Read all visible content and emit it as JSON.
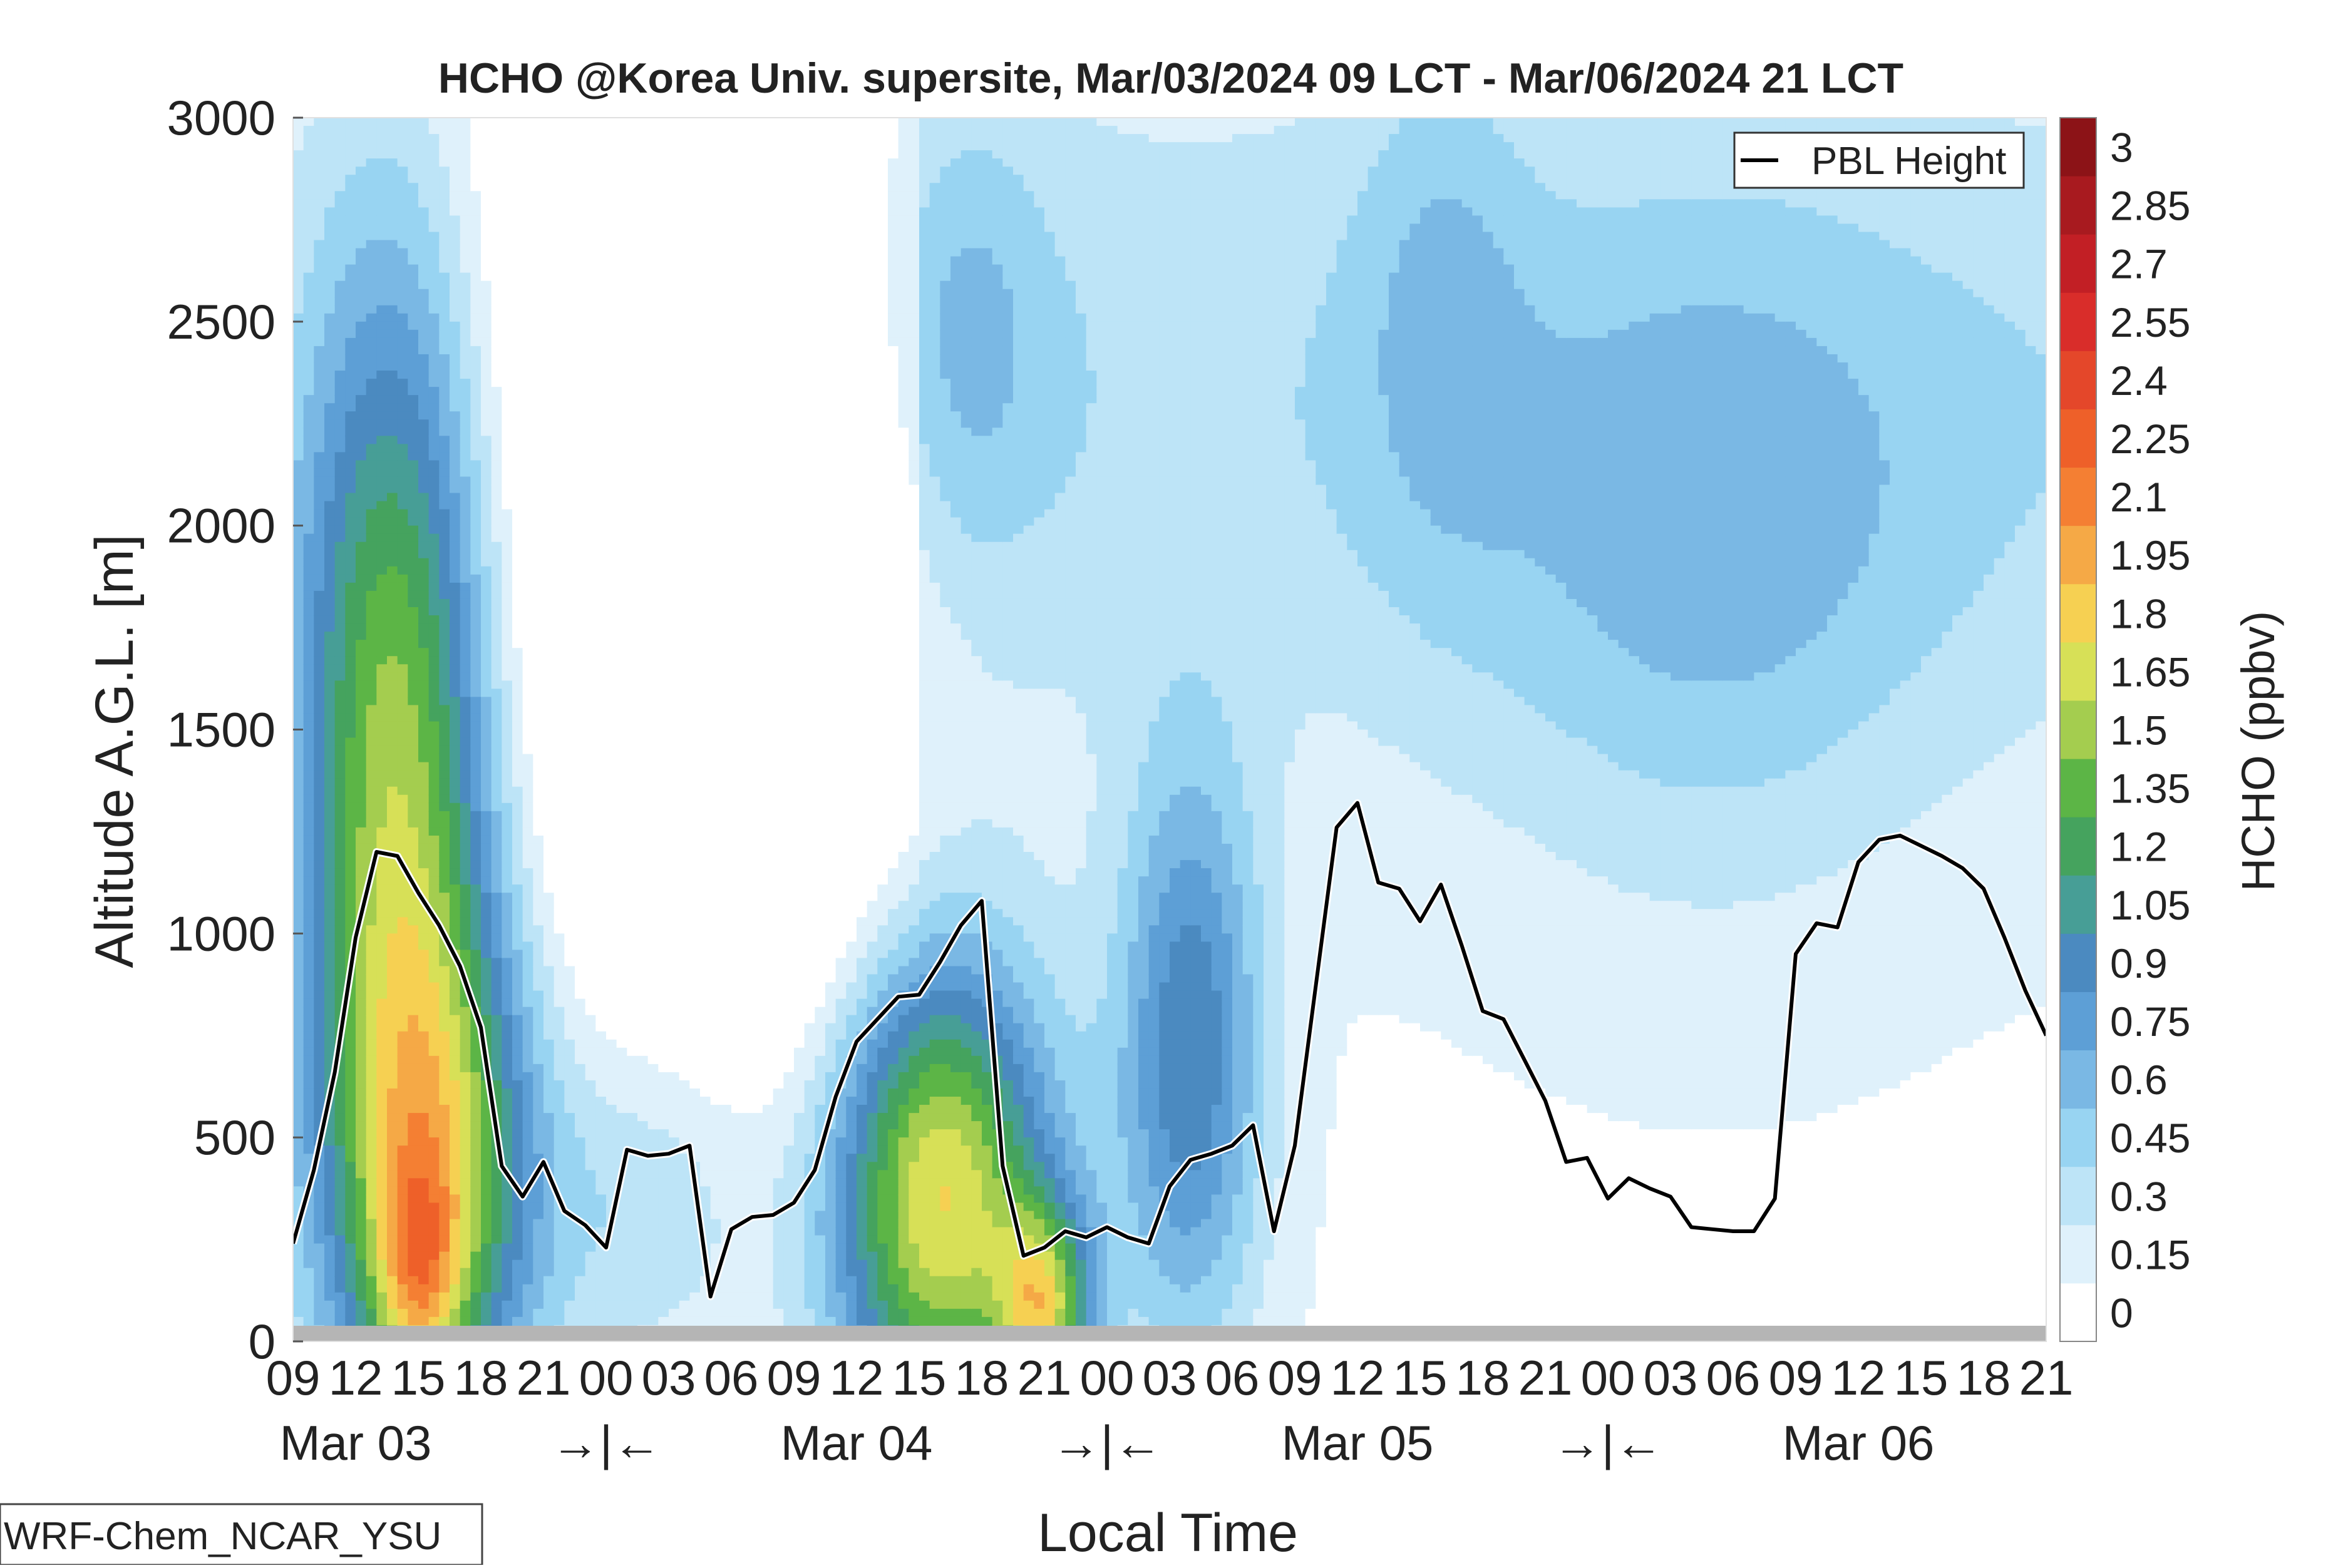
{
  "chart_data": {
    "type": "heatmap",
    "title": "HCHO @Korea Univ. supersite, Mar/03/2024 09 LCT - Mar/06/2024 21 LCT",
    "xlabel": "Local Time",
    "ylabel": "Altitude A.G.L. [m]",
    "ylim": [
      0,
      3000
    ],
    "y_ticks": [
      0,
      500,
      1000,
      1500,
      2000,
      2500,
      3000
    ],
    "x_hour_labels": [
      "09",
      "12",
      "15",
      "18",
      "21",
      "00",
      "03",
      "06",
      "09",
      "12",
      "15",
      "18",
      "21",
      "00",
      "03",
      "06",
      "09",
      "12",
      "15",
      "18",
      "21",
      "00",
      "03",
      "06",
      "09",
      "12",
      "15",
      "18",
      "21"
    ],
    "x_date_labels": [
      "Mar 03",
      "→|←",
      "Mar 04",
      "→|←",
      "Mar 05",
      "→|←",
      "Mar 06"
    ],
    "colorbar": {
      "label": "HCHO (ppbv)",
      "tick_labels": [
        "0",
        "0.15",
        "0.3",
        "0.45",
        "0.6",
        "0.75",
        "0.9",
        "1.05",
        "1.2",
        "1.35",
        "1.5",
        "1.65",
        "1.8",
        "1.95",
        "2.1",
        "2.25",
        "2.4",
        "2.55",
        "2.7",
        "2.85",
        "3"
      ],
      "colors": [
        "#ffffff",
        "#dff1fb",
        "#bde4f7",
        "#98d4f2",
        "#7ab8e4",
        "#5d9fd6",
        "#4b8ac0",
        "#479e96",
        "#45a35e",
        "#5cb546",
        "#a4cd4f",
        "#d7e057",
        "#f6d052",
        "#f5a946",
        "#f47f33",
        "#ee6029",
        "#e4472a",
        "#d92d2a",
        "#c21f25",
        "#a81a1f",
        "#8c1317"
      ]
    },
    "legend": {
      "position": "top-right",
      "entries": [
        "PBL Height"
      ]
    },
    "grid": false,
    "pbl_height": {
      "name": "PBL Height",
      "x_hours": [
        0,
        1,
        2,
        3,
        4,
        5,
        6,
        7,
        8,
        9,
        10,
        11,
        12,
        13,
        14,
        15,
        16,
        17,
        18,
        19,
        20,
        21,
        22,
        23,
        24,
        25,
        26,
        27,
        28,
        29,
        30,
        31,
        32,
        33,
        34,
        35,
        36,
        37,
        38,
        39,
        40,
        41,
        42,
        43,
        44,
        45,
        46,
        47,
        48,
        49,
        50,
        51,
        52,
        53,
        54,
        55,
        56,
        57,
        58,
        59,
        60,
        61,
        62,
        63,
        64,
        65,
        66,
        67,
        68,
        69,
        70,
        71,
        72,
        73,
        74,
        75,
        76,
        77,
        78,
        79,
        80,
        81,
        82,
        83,
        84
      ],
      "values": [
        240,
        420,
        660,
        990,
        1200,
        1190,
        1100,
        1020,
        920,
        770,
        430,
        355,
        440,
        320,
        285,
        230,
        470,
        455,
        460,
        480,
        110,
        275,
        305,
        310,
        340,
        420,
        600,
        735,
        790,
        845,
        850,
        930,
        1020,
        1080,
        430,
        210,
        230,
        270,
        255,
        280,
        255,
        240,
        380,
        445,
        460,
        480,
        530,
        270,
        480,
        870,
        1260,
        1320,
        1125,
        1110,
        1030,
        1120,
        970,
        810,
        790,
        690,
        590,
        440,
        450,
        350,
        400,
        375,
        355,
        280,
        275,
        270,
        270,
        350,
        950,
        1025,
        1015,
        1175,
        1230,
        1240,
        1215,
        1190,
        1160,
        1110,
        990,
        860,
        750
      ]
    },
    "hchol_field_description_levels": [
      0,
      0.15,
      0.3,
      0.45,
      0.6,
      0.75,
      0.9,
      1.05,
      1.2,
      1.35,
      1.5,
      1.65,
      1.8,
      1.95,
      2.1,
      2.25,
      2.4,
      2.55,
      2.7,
      2.85,
      3
    ]
  },
  "footnote": "WRF-Chem_NCAR_YSU"
}
